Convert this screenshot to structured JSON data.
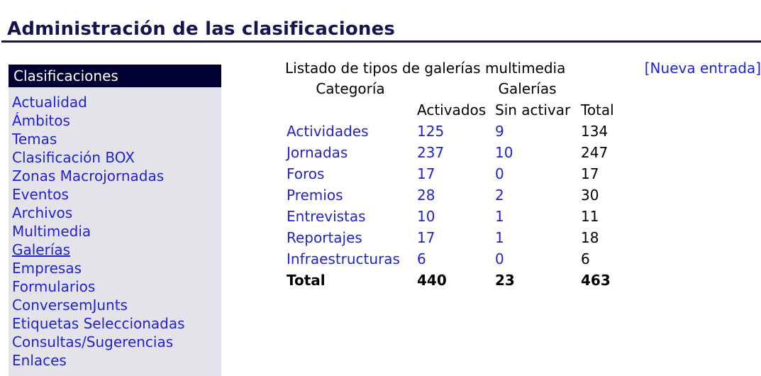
{
  "page": {
    "title": "Administración de las clasificaciones"
  },
  "sidebar": {
    "header": "Clasificaciones",
    "items": [
      {
        "label": "Actualidad"
      },
      {
        "label": "Ámbitos"
      },
      {
        "label": "Temas"
      },
      {
        "label": "Clasificación BOX"
      },
      {
        "label": "Zonas Macrojornadas"
      },
      {
        "label": "Eventos"
      },
      {
        "label": "Archivos"
      },
      {
        "label": "Multimedia"
      },
      {
        "label": "Galerías",
        "active": true
      },
      {
        "label": "Empresas"
      },
      {
        "label": "Formularios"
      },
      {
        "label": "ConversemJunts"
      },
      {
        "label": "Etiquetas Seleccionadas"
      },
      {
        "label": "Consultas/Sugerencias"
      },
      {
        "label": "Enlaces"
      }
    ]
  },
  "main": {
    "listing_title": "Listado de tipos de galerías multimedia",
    "new_entry_link": "[Nueva entrada]",
    "table": {
      "header_category": "Categoría",
      "header_group": "Galerías",
      "subheaders": [
        "Activados",
        "Sin activar",
        "Total"
      ],
      "rows": [
        {
          "category": "Actividades",
          "active": "125",
          "inactive": "9",
          "total": "134"
        },
        {
          "category": "Jornadas",
          "active": "237",
          "inactive": "10",
          "total": "247"
        },
        {
          "category": "Foros",
          "active": "17",
          "inactive": "0",
          "total": "17"
        },
        {
          "category": "Premios",
          "active": "28",
          "inactive": "2",
          "total": "30"
        },
        {
          "category": "Entrevistas",
          "active": "10",
          "inactive": "1",
          "total": "11"
        },
        {
          "category": "Reportajes",
          "active": "17",
          "inactive": "1",
          "total": "18"
        },
        {
          "category": "Infraestructuras",
          "active": "6",
          "inactive": "0",
          "total": "6"
        }
      ],
      "totals": {
        "label": "Total",
        "active": "440",
        "inactive": "23",
        "total": "463"
      }
    }
  }
}
